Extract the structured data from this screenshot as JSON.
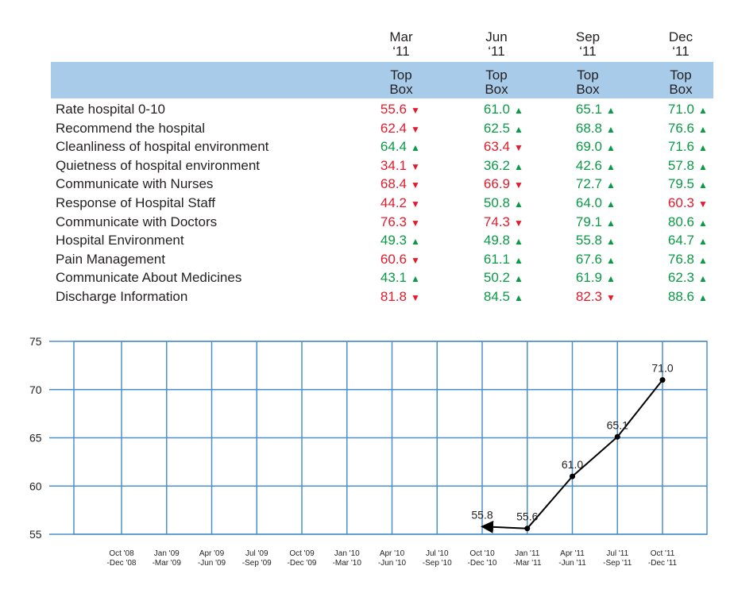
{
  "table": {
    "periods": [
      {
        "month": "Mar",
        "year": "‘11"
      },
      {
        "month": "Jun",
        "year": "‘11"
      },
      {
        "month": "Sep",
        "year": "‘11"
      },
      {
        "month": "Dec",
        "year": "‘11"
      }
    ],
    "column_label": {
      "line1": "Top",
      "line2": "Box"
    },
    "colors": {
      "up": "#0a9a45",
      "down": "#e21b2c",
      "band": "#a8cbe9"
    },
    "rows": [
      {
        "metric": "Rate hospital 0-10",
        "cells": [
          {
            "value": "55.6",
            "trend": "down"
          },
          {
            "value": "61.0",
            "trend": "up"
          },
          {
            "value": "65.1",
            "trend": "up"
          },
          {
            "value": "71.0",
            "trend": "up"
          }
        ]
      },
      {
        "metric": "Recommend the hospital",
        "cells": [
          {
            "value": "62.4",
            "trend": "down"
          },
          {
            "value": "62.5",
            "trend": "up"
          },
          {
            "value": "68.8",
            "trend": "up"
          },
          {
            "value": "76.6",
            "trend": "up"
          }
        ]
      },
      {
        "metric": "Cleanliness of hospital environment",
        "cells": [
          {
            "value": "64.4",
            "trend": "up"
          },
          {
            "value": "63.4",
            "trend": "down"
          },
          {
            "value": "69.0",
            "trend": "up"
          },
          {
            "value": "71.6",
            "trend": "up"
          }
        ]
      },
      {
        "metric": "Quietness of hospital environment",
        "cells": [
          {
            "value": "34.1",
            "trend": "down"
          },
          {
            "value": "36.2",
            "trend": "up"
          },
          {
            "value": "42.6",
            "trend": "up"
          },
          {
            "value": "57.8",
            "trend": "up"
          }
        ]
      },
      {
        "metric": "Communicate with Nurses",
        "cells": [
          {
            "value": "68.4",
            "trend": "down"
          },
          {
            "value": "66.9",
            "trend": "down"
          },
          {
            "value": "72.7",
            "trend": "up"
          },
          {
            "value": "79.5",
            "trend": "up"
          }
        ]
      },
      {
        "metric": "Response of Hospital Staff",
        "cells": [
          {
            "value": "44.2",
            "trend": "down"
          },
          {
            "value": "50.8",
            "trend": "up"
          },
          {
            "value": "64.0",
            "trend": "up"
          },
          {
            "value": "60.3",
            "trend": "down"
          }
        ]
      },
      {
        "metric": "Communicate with Doctors",
        "cells": [
          {
            "value": "76.3",
            "trend": "down"
          },
          {
            "value": "74.3",
            "trend": "down"
          },
          {
            "value": "79.1",
            "trend": "up"
          },
          {
            "value": "80.6",
            "trend": "up"
          }
        ]
      },
      {
        "metric": "Hospital Environment",
        "cells": [
          {
            "value": "49.3",
            "trend": "up"
          },
          {
            "value": "49.8",
            "trend": "up"
          },
          {
            "value": "55.8",
            "trend": "up"
          },
          {
            "value": "64.7",
            "trend": "up"
          }
        ]
      },
      {
        "metric": "Pain Management",
        "cells": [
          {
            "value": "60.6",
            "trend": "down"
          },
          {
            "value": "61.1",
            "trend": "up"
          },
          {
            "value": "67.6",
            "trend": "up"
          },
          {
            "value": "76.8",
            "trend": "up"
          }
        ]
      },
      {
        "metric": "Communicate About Medicines",
        "cells": [
          {
            "value": "43.1",
            "trend": "up"
          },
          {
            "value": "50.2",
            "trend": "up"
          },
          {
            "value": "61.9",
            "trend": "up"
          },
          {
            "value": "62.3",
            "trend": "up"
          }
        ]
      },
      {
        "metric": "Discharge Information",
        "cells": [
          {
            "value": "81.8",
            "trend": "down"
          },
          {
            "value": "84.5",
            "trend": "up"
          },
          {
            "value": "82.3",
            "trend": "down"
          },
          {
            "value": "88.6",
            "trend": "up"
          }
        ]
      }
    ]
  },
  "chart_data": {
    "type": "line",
    "title": "",
    "xlabel": "",
    "ylabel": "",
    "categories": [
      [
        "Oct '08",
        "-Dec '08"
      ],
      [
        "Jan '09",
        "-Mar '09"
      ],
      [
        "Apr '09",
        "-Jun '09"
      ],
      [
        "Jul '09",
        "-Sep '09"
      ],
      [
        "Oct '09",
        "-Dec '09"
      ],
      [
        "Jan '10",
        "-Mar '10"
      ],
      [
        "Apr '10",
        "-Jun '10"
      ],
      [
        "Jul '10",
        "-Sep '10"
      ],
      [
        "Oct '10",
        "-Dec '10"
      ],
      [
        "Jan '11",
        "-Mar '11"
      ],
      [
        "Apr '11",
        "-Jun '11"
      ],
      [
        "Jul '11",
        "-Sep '11"
      ],
      [
        "Oct '11",
        "-Dec '11"
      ]
    ],
    "series": [
      {
        "values": [
          null,
          null,
          null,
          null,
          null,
          null,
          null,
          null,
          55.8,
          55.6,
          61.0,
          65.1,
          71.0
        ],
        "labels": [
          "",
          "",
          "",
          "",
          "",
          "",
          "",
          "",
          "55.8",
          "55.6",
          "61.0",
          "65.1",
          "71.0"
        ]
      }
    ],
    "yticks": [
      "75",
      "70",
      "65",
      "60",
      "55"
    ],
    "ylim": [
      55,
      75
    ],
    "grid": true,
    "legend": "none",
    "colors": {
      "grid": "#4a90cd",
      "line": "#000000"
    }
  }
}
